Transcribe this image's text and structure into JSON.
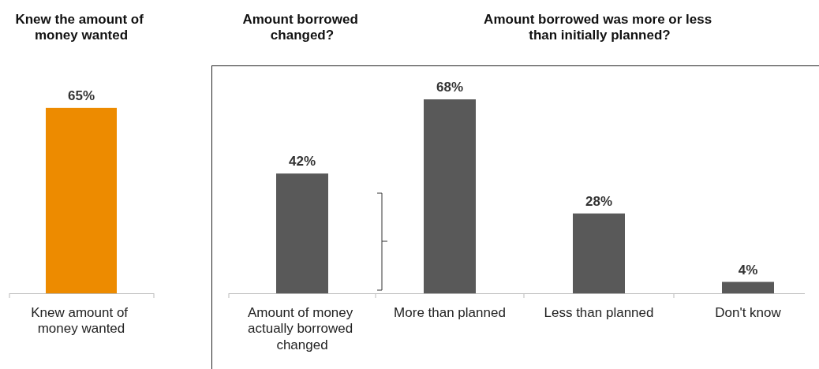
{
  "chart_data": {
    "type": "bar",
    "categories": [
      "Knew amount of money wanted",
      "Amount of money actually borrowed changed",
      "More than planned",
      "Less than planned",
      "Don't know"
    ],
    "values": [
      65,
      42,
      68,
      28,
      4
    ],
    "colors": [
      "#ed8b00",
      "#595959",
      "#595959",
      "#595959",
      "#595959"
    ],
    "value_labels": [
      "65%",
      "42%",
      "68%",
      "28%",
      "4%"
    ],
    "annotations": [
      "Knew the amount of money wanted",
      "Amount borrowed changed?",
      "Amount borrowed was more or less than initially planned?"
    ]
  }
}
